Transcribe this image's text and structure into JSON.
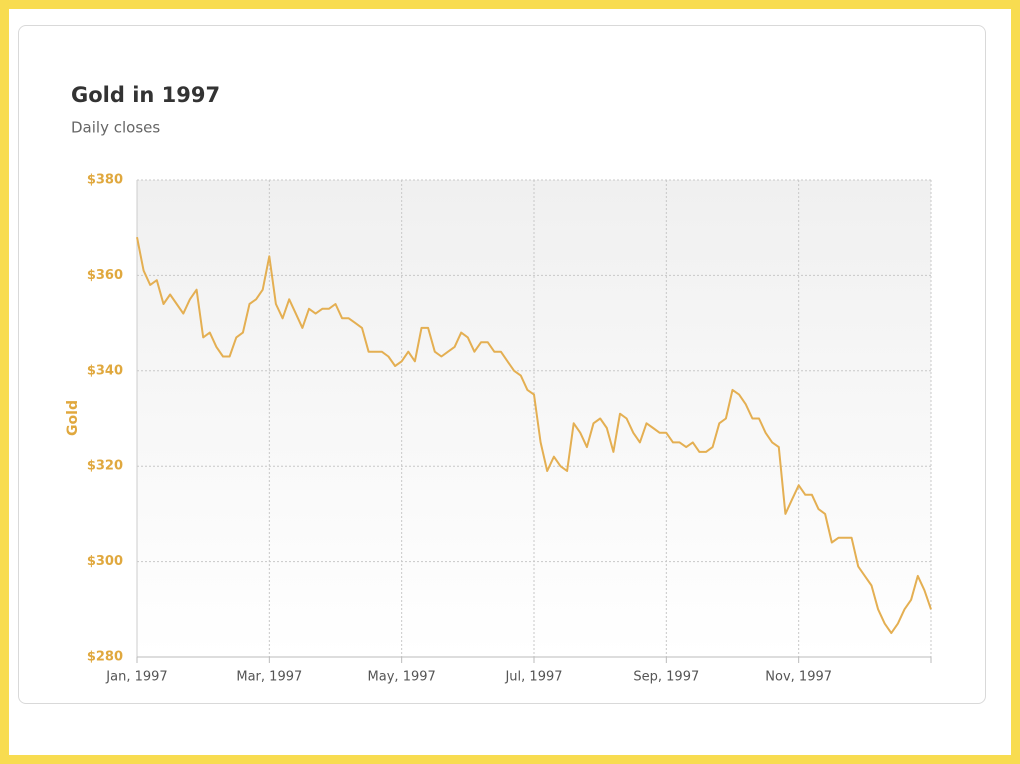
{
  "chart_data": {
    "type": "line",
    "title": "Gold in 1997",
    "subtitle": "Daily closes",
    "y_label": "Gold",
    "categories": [
      "Jan, 1997",
      null,
      null,
      null,
      null,
      null,
      null,
      null,
      null,
      null,
      null,
      null,
      null,
      null,
      null,
      null,
      null,
      null,
      null,
      null,
      "Mar, 1997",
      null,
      null,
      null,
      null,
      null,
      null,
      null,
      null,
      null,
      null,
      null,
      null,
      null,
      null,
      null,
      null,
      null,
      null,
      null,
      "May, 1997",
      null,
      null,
      null,
      null,
      null,
      null,
      null,
      null,
      null,
      null,
      null,
      null,
      null,
      null,
      null,
      null,
      null,
      null,
      null,
      "Jul, 1997",
      null,
      null,
      null,
      null,
      null,
      null,
      null,
      null,
      null,
      null,
      null,
      null,
      null,
      null,
      null,
      null,
      null,
      null,
      null,
      "Sep, 1997",
      null,
      null,
      null,
      null,
      null,
      null,
      null,
      null,
      null,
      null,
      null,
      null,
      null,
      null,
      null,
      null,
      null,
      null,
      null,
      "Nov, 1997",
      null,
      null,
      null,
      null,
      null,
      null,
      null,
      null,
      null,
      null,
      null,
      null,
      null,
      null,
      null,
      null,
      null,
      null,
      null,
      null
    ],
    "series": [
      {
        "name": "Gold",
        "color": "#e4af52",
        "values": [
          368,
          361,
          358,
          359,
          354,
          356,
          354,
          352,
          355,
          357,
          347,
          348,
          345,
          343,
          343,
          347,
          348,
          354,
          355,
          357,
          364,
          354,
          351,
          355,
          352,
          349,
          353,
          352,
          353,
          353,
          354,
          351,
          351,
          350,
          349,
          344,
          344,
          344,
          343,
          341,
          342,
          344,
          342,
          349,
          349,
          344,
          343,
          344,
          345,
          348,
          347,
          344,
          346,
          346,
          344,
          344,
          342,
          340,
          339,
          336,
          335,
          325,
          319,
          322,
          320,
          319,
          329,
          327,
          324,
          329,
          330,
          328,
          323,
          331,
          330,
          327,
          325,
          329,
          328,
          327,
          327,
          325,
          325,
          324,
          325,
          323,
          323,
          324,
          329,
          330,
          336,
          335,
          333,
          330,
          330,
          327,
          325,
          324,
          310,
          313,
          316,
          314,
          314,
          311,
          310,
          304,
          305,
          305,
          305,
          299,
          297,
          295,
          290,
          287,
          285,
          287,
          290,
          292,
          297,
          294,
          290
        ]
      }
    ],
    "ylim": [
      280,
      380
    ],
    "yticks": [
      {
        "value": 280,
        "label": "$280"
      },
      {
        "value": 300,
        "label": "$300"
      },
      {
        "value": 320,
        "label": "$320"
      },
      {
        "value": 340,
        "label": "$340"
      },
      {
        "value": 360,
        "label": "$360"
      },
      {
        "value": 380,
        "label": "$380"
      }
    ],
    "grid": true
  }
}
